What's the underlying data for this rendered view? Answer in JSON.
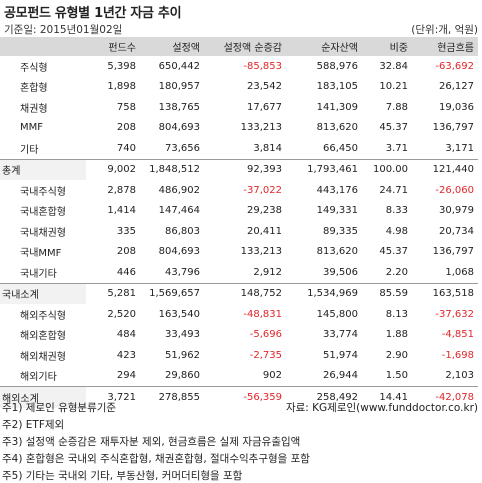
{
  "title": "공모펀드 유형별 1년간 자금 추이",
  "date_label": "기준일: 2015년01월02일",
  "unit_label": "(단위:개, 억원)",
  "columns": [
    "",
    "펀드수",
    "설정액",
    "설정액 순증감",
    "순자산액",
    "비중",
    "현금흐름"
  ],
  "rows": [
    {
      "label": "주식형",
      "level": 1,
      "vals": [
        "5,398",
        "650,442",
        "-85,853",
        "588,976",
        "32.84",
        "-63,692"
      ]
    },
    {
      "label": "혼합형",
      "level": 1,
      "vals": [
        "1,898",
        "180,957",
        "23,542",
        "183,105",
        "10.21",
        "26,127"
      ]
    },
    {
      "label": "채권형",
      "level": 1,
      "vals": [
        "758",
        "138,765",
        "17,677",
        "141,309",
        "7.88",
        "19,036"
      ]
    },
    {
      "label": "MMF",
      "level": 1,
      "vals": [
        "208",
        "804,693",
        "133,213",
        "813,620",
        "45.37",
        "136,797"
      ]
    },
    {
      "label": "기타",
      "level": 1,
      "vals": [
        "740",
        "73,656",
        "3,814",
        "66,450",
        "3.71",
        "3,171"
      ]
    },
    {
      "label": "총계",
      "level": 0,
      "total": true,
      "vals": [
        "9,002",
        "1,848,512",
        "92,393",
        "1,793,461",
        "100.00",
        "121,440"
      ]
    },
    {
      "label": "국내주식형",
      "level": 2,
      "vals": [
        "2,878",
        "486,902",
        "-37,022",
        "443,176",
        "24.71",
        "-26,060"
      ]
    },
    {
      "label": "국내혼합형",
      "level": 2,
      "vals": [
        "1,414",
        "147,464",
        "29,238",
        "149,331",
        "8.33",
        "30,979"
      ]
    },
    {
      "label": "국내채권형",
      "level": 2,
      "vals": [
        "335",
        "86,803",
        "20,411",
        "89,335",
        "4.98",
        "20,734"
      ]
    },
    {
      "label": "국내MMF",
      "level": 2,
      "vals": [
        "208",
        "804,693",
        "133,213",
        "813,620",
        "45.37",
        "136,797"
      ]
    },
    {
      "label": "국내기타",
      "level": 2,
      "vals": [
        "446",
        "43,796",
        "2,912",
        "39,506",
        "2.20",
        "1,068"
      ]
    },
    {
      "label": "국내소계",
      "level": 0,
      "total": true,
      "vals": [
        "5,281",
        "1,569,657",
        "148,752",
        "1,534,969",
        "85.59",
        "163,518"
      ]
    },
    {
      "label": "해외주식형",
      "level": 2,
      "vals": [
        "2,520",
        "163,540",
        "-48,831",
        "145,800",
        "8.13",
        "-37,632"
      ]
    },
    {
      "label": "해외혼합형",
      "level": 2,
      "vals": [
        "484",
        "33,493",
        "-5,696",
        "33,774",
        "1.88",
        "-4,851"
      ]
    },
    {
      "label": "해외채권형",
      "level": 2,
      "vals": [
        "423",
        "51,962",
        "-2,735",
        "51,974",
        "2.90",
        "-1,698"
      ]
    },
    {
      "label": "해외기타",
      "level": 2,
      "vals": [
        "294",
        "29,860",
        "902",
        "26,944",
        "1.50",
        "2,103"
      ]
    },
    {
      "label": "해외소계",
      "level": 0,
      "total": true,
      "vals": [
        "3,721",
        "278,855",
        "-56,359",
        "258,492",
        "14.41",
        "-42,078"
      ]
    }
  ],
  "source": "자료: KG제로인(www.funddoctor.co.kr)",
  "notes": [
    "주1) 제로인 유형분류기준",
    "주2) ETF제외",
    "주3) 설정액 순증감은 재투자분 제외, 현금흐름은 실제 자금유출입액",
    "주4) 혼합형은 국내외 주식혼합형, 채권혼합형, 절대수익추구형을 포함",
    "주5) 기타는 국내외 기타, 부동산형, 커머더티형을 포함"
  ],
  "colors": {
    "negative": "#e3262a",
    "header_bg": "#d9d9d9"
  }
}
